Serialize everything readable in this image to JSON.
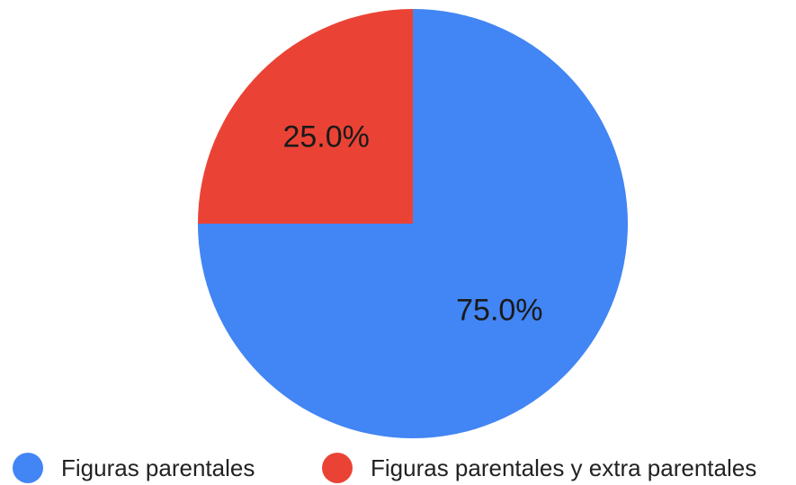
{
  "chart_data": {
    "type": "pie",
    "title": "",
    "slices": [
      {
        "name": "Figuras parentales",
        "value": 75.0,
        "label": "75.0%",
        "color": "#4285f4"
      },
      {
        "name": "Figuras parentales y extra parentales",
        "value": 25.0,
        "label": "25.0%",
        "color": "#ea4335"
      }
    ],
    "legend_position": "bottom",
    "start_angle": "12 o'clock",
    "direction": "clockwise"
  }
}
